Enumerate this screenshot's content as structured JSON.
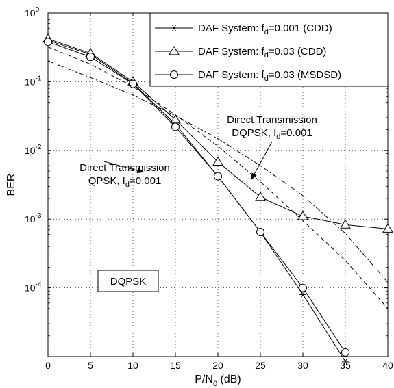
{
  "chart_data": {
    "type": "line",
    "xlabel_main": "P/N",
    "xlabel_sub": "0",
    "xlabel_unit": " (dB)",
    "ylabel": "BER",
    "xlim": [
      0,
      40
    ],
    "ylim": [
      1e-05,
      1
    ],
    "y_scale": "log",
    "grid": true,
    "x_ticks": [
      0,
      5,
      10,
      15,
      20,
      25,
      30,
      35,
      40
    ],
    "x_tick_labels": [
      "0",
      "5",
      "10",
      "15",
      "20",
      "25",
      "30",
      "35",
      "40"
    ],
    "y_ticks": [
      {
        "value": 1,
        "base": "10",
        "exp": "0"
      },
      {
        "value": 0.1,
        "base": "10",
        "exp": "-1"
      },
      {
        "value": 0.01,
        "base": "10",
        "exp": "-2"
      },
      {
        "value": 0.001,
        "base": "10",
        "exp": "-3"
      },
      {
        "value": 0.0001,
        "base": "10",
        "exp": "-4"
      }
    ],
    "legend_position": "top-right",
    "series": [
      {
        "legend_main": "DAF System: f",
        "legend_sub": "d",
        "legend_rest": "=0.001 (CDD)",
        "marker": "asterisk",
        "line": "solid",
        "x": [
          0,
          5,
          10,
          15,
          20,
          25,
          30,
          35
        ],
        "y": [
          0.4,
          0.25,
          0.095,
          0.024,
          0.0042,
          0.00065,
          8e-05,
          8.5e-06
        ]
      },
      {
        "legend_main": "DAF System: f",
        "legend_sub": "d",
        "legend_rest": "=0.03 (CDD)",
        "marker": "triangle",
        "line": "solid",
        "x": [
          0,
          5,
          10,
          15,
          20,
          25,
          30,
          35,
          40
        ],
        "y": [
          0.42,
          0.26,
          0.1,
          0.028,
          0.0068,
          0.0021,
          0.0011,
          0.00083,
          0.00072
        ]
      },
      {
        "legend_main": "DAF System: f",
        "legend_sub": "d",
        "legend_rest": "=0.03 (MSDSD)",
        "marker": "circle",
        "line": "solid",
        "x": [
          0,
          5,
          10,
          15,
          20,
          25,
          30,
          35
        ],
        "y": [
          0.38,
          0.23,
          0.093,
          0.022,
          0.0042,
          0.00065,
          0.0001,
          1.15e-05
        ]
      },
      {
        "marker": "none",
        "line": "dashed",
        "x": [
          0,
          5,
          10,
          15,
          20,
          25,
          30,
          35,
          40
        ],
        "y": [
          0.32,
          0.18,
          0.085,
          0.033,
          0.0115,
          0.0035,
          0.00095,
          0.00025,
          5e-05
        ]
      },
      {
        "marker": "none",
        "line": "dashdot",
        "x": [
          0,
          5,
          10,
          15,
          20,
          25,
          30,
          35,
          40
        ],
        "y": [
          0.2,
          0.115,
          0.064,
          0.032,
          0.0148,
          0.006,
          0.0022,
          0.00062,
          0.00012
        ]
      }
    ],
    "annotations": [
      {
        "line1": "Direct Transmission",
        "line2_main": "DQPSK, f",
        "line2_sub": "d",
        "line2_rest": "=0.001",
        "arrow_to": [
          23.9,
          0.0037
        ]
      },
      {
        "line1": "Direct Transmission",
        "line2_main": "QPSK, f",
        "line2_sub": "d",
        "line2_rest": "=0.001",
        "arrow_to": [
          11.3,
          0.0048
        ]
      }
    ],
    "box_label": "DQPSK"
  }
}
